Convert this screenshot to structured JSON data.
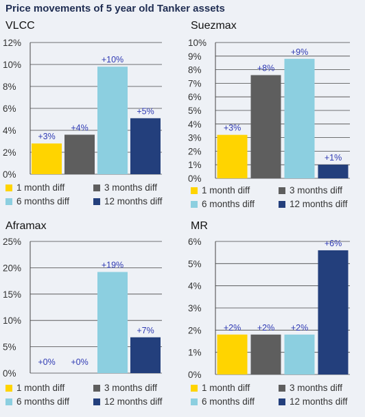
{
  "title": "Price movements of 5 year old Tanker assets",
  "legend_labels": [
    "1 month diff",
    "3 months diff",
    "6 months diff",
    "12 months diff"
  ],
  "colors": [
    "#ffd400",
    "#5e5e5e",
    "#8ccfe0",
    "#233f7c"
  ],
  "chart_data": [
    {
      "type": "bar",
      "title": "VLCC",
      "categories": [
        "1 month diff",
        "3 months diff",
        "6 months diff",
        "12 months diff"
      ],
      "values": [
        2.8,
        3.6,
        9.8,
        5.1
      ],
      "data_labels": [
        "+3%",
        "+4%",
        "+10%",
        "+5%"
      ],
      "ylim": [
        0,
        12
      ],
      "yticks": [
        0,
        2,
        4,
        6,
        8,
        10,
        12
      ],
      "ytick_labels": [
        "0%",
        "2%",
        "4%",
        "6%",
        "8%",
        "10%",
        "12%"
      ]
    },
    {
      "type": "bar",
      "title": "Suezmax",
      "categories": [
        "1 month diff",
        "3 months diff",
        "6 months diff",
        "12 months diff"
      ],
      "values": [
        3.2,
        7.6,
        8.8,
        1.0
      ],
      "data_labels": [
        "+3%",
        "+8%",
        "+9%",
        "+1%"
      ],
      "ylim": [
        0,
        10
      ],
      "yticks": [
        0,
        1,
        2,
        3,
        4,
        5,
        6,
        7,
        8,
        9,
        10
      ],
      "ytick_labels": [
        "0%",
        "1%",
        "2%",
        "3%",
        "4%",
        "5%",
        "6%",
        "7%",
        "8%",
        "9%",
        "10%"
      ]
    },
    {
      "type": "bar",
      "title": "Aframax",
      "categories": [
        "1 month diff",
        "3 months diff",
        "6 months diff",
        "12 months diff"
      ],
      "values": [
        0,
        0,
        19.2,
        6.8
      ],
      "data_labels": [
        "+0%",
        "+0%",
        "+19%",
        "+7%"
      ],
      "ylim": [
        0,
        25
      ],
      "yticks": [
        0,
        5,
        10,
        15,
        20,
        25
      ],
      "ytick_labels": [
        "0%",
        "5%",
        "10%",
        "15%",
        "20%",
        "25%"
      ]
    },
    {
      "type": "bar",
      "title": "MR",
      "categories": [
        "1 month diff",
        "3 months diff",
        "6 months diff",
        "12 months diff"
      ],
      "values": [
        1.8,
        1.8,
        1.8,
        5.6
      ],
      "data_labels": [
        "+2%",
        "+2%",
        "+2%",
        "+6%"
      ],
      "ylim": [
        0,
        6
      ],
      "yticks": [
        0,
        1,
        2,
        3,
        4,
        5,
        6
      ],
      "ytick_labels": [
        "0%",
        "1%",
        "2%",
        "3%",
        "4%",
        "5%",
        "6%"
      ]
    }
  ]
}
